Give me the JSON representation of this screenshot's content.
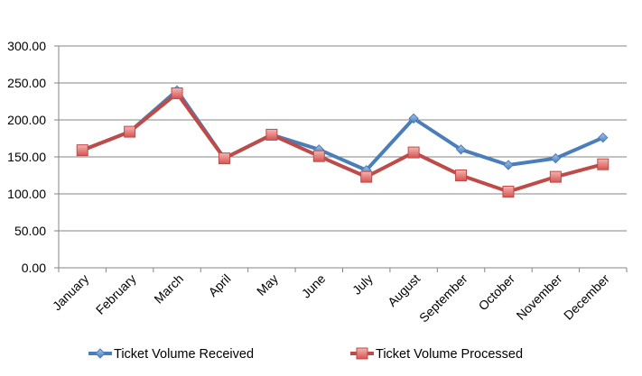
{
  "chart_data": {
    "type": "line",
    "categories": [
      "January",
      "February",
      "March",
      "April",
      "May",
      "June",
      "July",
      "August",
      "September",
      "October",
      "November",
      "December"
    ],
    "series": [
      {
        "name": "Ticket Volume Received",
        "values": [
          159,
          184,
          240,
          148,
          180,
          160,
          132,
          202,
          160,
          139,
          148,
          176
        ],
        "color": "#4a7ebb",
        "marker": "diamond"
      },
      {
        "name": "Ticket Volume Processed",
        "values": [
          159,
          184,
          236,
          148,
          180,
          151,
          123,
          156,
          125,
          103,
          123,
          140
        ],
        "color": "#be4b48",
        "marker": "square"
      }
    ],
    "ylim": [
      0,
      300
    ],
    "yticks": [
      "0.00",
      "50.00",
      "100.00",
      "150.00",
      "200.00",
      "250.00",
      "300.00"
    ],
    "grid": true,
    "legend_position": "bottom"
  }
}
